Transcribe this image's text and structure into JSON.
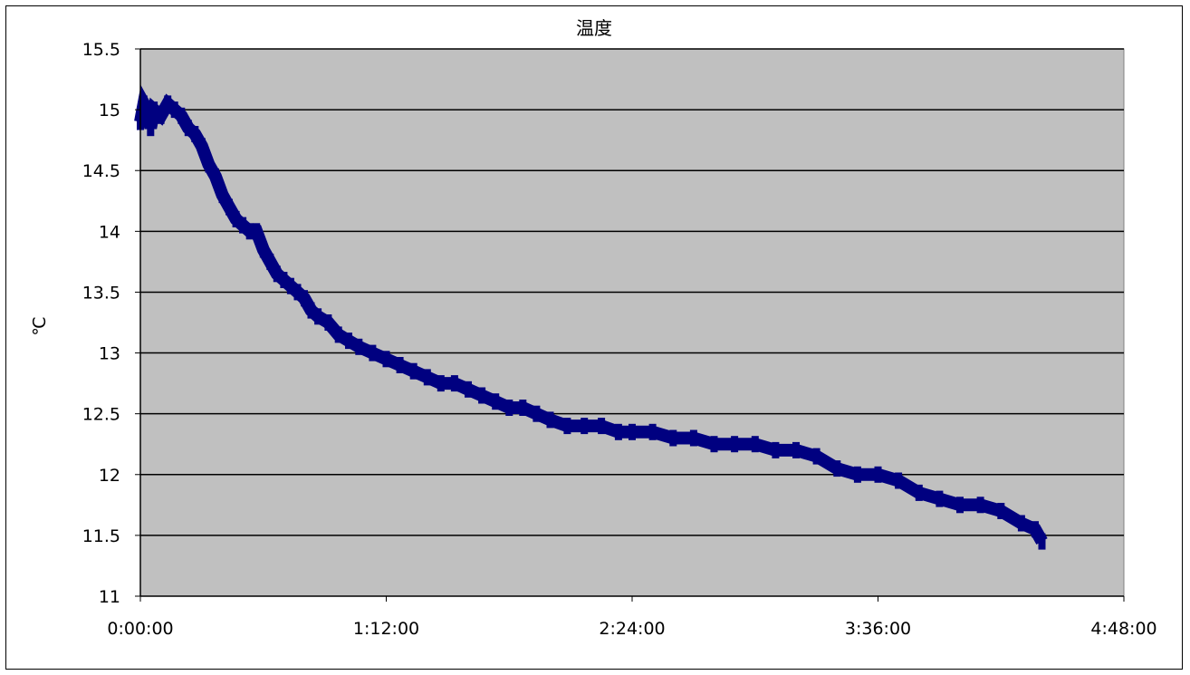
{
  "chart_data": {
    "type": "line",
    "title": "温度",
    "xlabel": "",
    "ylabel": "℃",
    "x_unit": "h:mm:ss",
    "xlim": [
      "0:00:00",
      "4:48:00"
    ],
    "ylim": [
      11,
      15.5
    ],
    "x_ticks": [
      "0:00:00",
      "1:12:00",
      "2:24:00",
      "3:36:00",
      "4:48:00"
    ],
    "y_ticks": [
      "11",
      "11.5",
      "12",
      "12.5",
      "13",
      "13.5",
      "14",
      "14.5",
      "15",
      "15.5"
    ],
    "grid": true,
    "legend": "none",
    "colors": {
      "plot_background": "#c0c0c0",
      "series": "#000080",
      "gridline": "#000000"
    },
    "series": [
      {
        "x": [
          "0:00:00",
          "0:01:00",
          "0:02:00",
          "0:03:00",
          "0:04:00",
          "0:06:00",
          "0:08:00",
          "0:10:00",
          "0:12:00",
          "0:14:00",
          "0:16:00",
          "0:18:00",
          "0:20:00",
          "0:22:00",
          "0:24:00",
          "0:26:00",
          "0:28:00",
          "0:30:00",
          "0:32:00",
          "0:34:00",
          "0:36:00",
          "0:38:00",
          "0:40:00",
          "0:42:00",
          "0:44:00",
          "0:46:00",
          "0:48:00",
          "0:50:00",
          "0:52:00",
          "0:55:00",
          "0:58:00",
          "1:01:00",
          "1:04:00",
          "1:08:00",
          "1:12:00",
          "1:16:00",
          "1:20:00",
          "1:24:00",
          "1:28:00",
          "1:32:00",
          "1:36:00",
          "1:40:00",
          "1:44:00",
          "1:48:00",
          "1:52:00",
          "1:56:00",
          "2:00:00",
          "2:05:00",
          "2:10:00",
          "2:15:00",
          "2:20:00",
          "2:24:00",
          "2:30:00",
          "2:36:00",
          "2:42:00",
          "2:48:00",
          "2:54:00",
          "3:00:00",
          "3:06:00",
          "3:12:00",
          "3:18:00",
          "3:24:00",
          "3:30:00",
          "3:36:00",
          "3:42:00",
          "3:48:00",
          "3:54:00",
          "4:00:00",
          "4:06:00",
          "4:12:00",
          "4:18:00",
          "4:22:00",
          "4:24:00"
        ],
        "values": [
          14.9,
          15.05,
          15.0,
          14.85,
          15.0,
          14.95,
          15.05,
          15.0,
          14.95,
          14.85,
          14.8,
          14.7,
          14.55,
          14.45,
          14.3,
          14.2,
          14.1,
          14.05,
          14.0,
          14.0,
          13.85,
          13.75,
          13.65,
          13.6,
          13.55,
          13.5,
          13.45,
          13.35,
          13.3,
          13.25,
          13.15,
          13.1,
          13.05,
          13.0,
          12.95,
          12.9,
          12.85,
          12.8,
          12.75,
          12.75,
          12.7,
          12.65,
          12.6,
          12.55,
          12.55,
          12.5,
          12.45,
          12.4,
          12.4,
          12.4,
          12.35,
          12.35,
          12.35,
          12.3,
          12.3,
          12.25,
          12.25,
          12.25,
          12.2,
          12.2,
          12.15,
          12.05,
          12.0,
          12.0,
          11.95,
          11.85,
          11.8,
          11.75,
          11.75,
          11.7,
          11.6,
          11.55,
          11.45
        ]
      }
    ]
  }
}
